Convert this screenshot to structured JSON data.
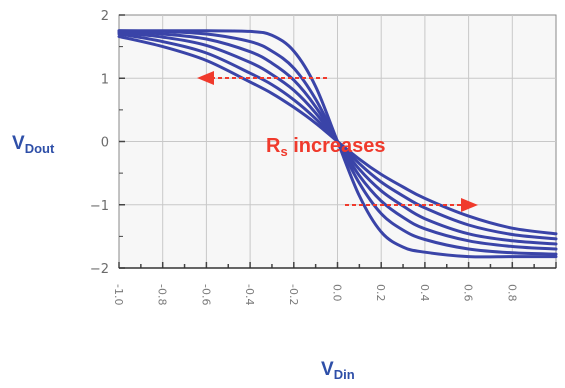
{
  "chart_data": {
    "type": "line",
    "title": "",
    "xlabel": {
      "main": "V",
      "sub": "Din"
    },
    "ylabel": {
      "main": "V",
      "sub": "Dout"
    },
    "xlim": [
      -1.0,
      1.0
    ],
    "ylim": [
      -2,
      2
    ],
    "x_ticks": [
      {
        "value": -1.0,
        "label": "-1.0"
      },
      {
        "value": -0.8,
        "label": "-0.8"
      },
      {
        "value": -0.6,
        "label": "-0.6"
      },
      {
        "value": -0.4,
        "label": "-0.4"
      },
      {
        "value": -0.2,
        "label": "-0.2"
      },
      {
        "value": 0.0,
        "label": "0.0"
      },
      {
        "value": 0.2,
        "label": "0.2"
      },
      {
        "value": 0.4,
        "label": "0.4"
      },
      {
        "value": 0.6,
        "label": "0.6"
      },
      {
        "value": 0.8,
        "label": "0.8"
      }
    ],
    "y_ticks": [
      {
        "value": 2,
        "label": "2"
      },
      {
        "value": 1,
        "label": "1"
      },
      {
        "value": 0,
        "label": "0"
      },
      {
        "value": -1,
        "label": "−1"
      },
      {
        "value": -2,
        "label": "−2"
      }
    ],
    "grid": true,
    "series_color": "#3a44a8",
    "series": [
      {
        "x": [
          -1.0,
          -0.8,
          -0.6,
          -0.4,
          -0.3,
          -0.2,
          -0.1,
          0.0,
          0.1,
          0.2,
          0.3,
          0.4,
          0.6,
          0.8,
          1.0
        ],
        "y": [
          1.75,
          1.75,
          1.75,
          1.74,
          1.68,
          1.43,
          0.87,
          0.0,
          -0.86,
          -1.43,
          -1.67,
          -1.75,
          -1.82,
          -1.82,
          -1.82
        ]
      },
      {
        "x": [
          -1.0,
          -0.8,
          -0.6,
          -0.4,
          -0.3,
          -0.2,
          -0.1,
          0.0,
          0.1,
          0.2,
          0.3,
          0.4,
          0.6,
          0.8,
          1.0
        ],
        "y": [
          1.75,
          1.74,
          1.7,
          1.58,
          1.43,
          1.16,
          0.67,
          0.0,
          -0.66,
          -1.14,
          -1.4,
          -1.55,
          -1.7,
          -1.76,
          -1.78
        ]
      },
      {
        "x": [
          -1.0,
          -0.8,
          -0.6,
          -0.4,
          -0.3,
          -0.2,
          -0.1,
          0.0,
          0.1,
          0.2,
          0.3,
          0.4,
          0.6,
          0.8,
          1.0
        ],
        "y": [
          1.74,
          1.7,
          1.62,
          1.42,
          1.24,
          0.97,
          0.55,
          0.0,
          -0.54,
          -0.94,
          -1.2,
          -1.38,
          -1.57,
          -1.66,
          -1.7
        ]
      },
      {
        "x": [
          -1.0,
          -0.8,
          -0.6,
          -0.4,
          -0.3,
          -0.2,
          -0.1,
          0.0,
          0.1,
          0.2,
          0.3,
          0.4,
          0.6,
          0.8,
          1.0
        ],
        "y": [
          1.72,
          1.65,
          1.52,
          1.25,
          1.06,
          0.81,
          0.45,
          0.0,
          -0.44,
          -0.78,
          -1.02,
          -1.22,
          -1.46,
          -1.57,
          -1.62
        ]
      },
      {
        "x": [
          -1.0,
          -0.8,
          -0.6,
          -0.4,
          -0.3,
          -0.2,
          -0.1,
          0.0,
          0.1,
          0.2,
          0.3,
          0.4,
          0.6,
          0.8,
          1.0
        ],
        "y": [
          1.7,
          1.58,
          1.4,
          1.08,
          0.9,
          0.66,
          0.36,
          0.0,
          -0.35,
          -0.64,
          -0.86,
          -1.05,
          -1.32,
          -1.47,
          -1.54
        ]
      },
      {
        "x": [
          -1.0,
          -0.8,
          -0.6,
          -0.4,
          -0.3,
          -0.2,
          -0.1,
          0.0,
          0.1,
          0.2,
          0.3,
          0.4,
          0.6,
          0.8,
          1.0
        ],
        "y": [
          1.66,
          1.5,
          1.28,
          0.94,
          0.76,
          0.54,
          0.29,
          0.0,
          -0.28,
          -0.52,
          -0.72,
          -0.9,
          -1.18,
          -1.37,
          -1.46
        ]
      }
    ],
    "annotations": [
      {
        "main": "R",
        "sub": "s",
        "rest": " increases"
      }
    ]
  }
}
